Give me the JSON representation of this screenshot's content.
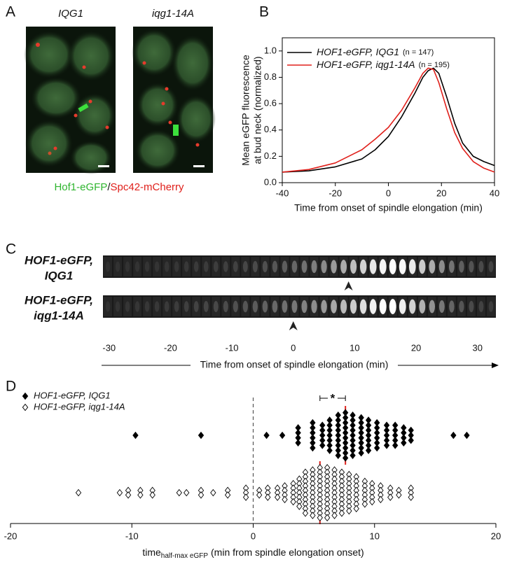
{
  "panel_a": {
    "label": "A",
    "images": [
      {
        "title": "IQG1"
      },
      {
        "title": "iqg1-14A"
      }
    ],
    "caption": {
      "green": "Hof1-eGFP",
      "separator": "/",
      "red": "Spc42-mCherry"
    }
  },
  "chart_data": [
    {
      "type": "line",
      "panel": "B",
      "xlabel": "Time from onset of spindle elongation (min)",
      "ylabel": [
        "Mean eGFP fluorescence",
        "at bud neck (normalized)"
      ],
      "x": [
        -40,
        -30,
        -20,
        -10,
        -5,
        0,
        5,
        10,
        13,
        15,
        17,
        19,
        22,
        25,
        28,
        32,
        36,
        40
      ],
      "series": [
        {
          "name": "HOF1-eGFP, IQG1",
          "n_label": "(n = 147)",
          "color": "#000000",
          "values": [
            0.08,
            0.09,
            0.12,
            0.18,
            0.25,
            0.35,
            0.5,
            0.68,
            0.8,
            0.85,
            0.87,
            0.83,
            0.65,
            0.45,
            0.3,
            0.2,
            0.16,
            0.13
          ]
        },
        {
          "name": "HOF1-eGFP, iqg1-14A",
          "n_label": "(n = 195)",
          "color": "#e0201b",
          "values": [
            0.08,
            0.1,
            0.15,
            0.25,
            0.33,
            0.42,
            0.55,
            0.72,
            0.83,
            0.87,
            0.86,
            0.76,
            0.56,
            0.38,
            0.26,
            0.16,
            0.11,
            0.08
          ]
        }
      ],
      "xlim": [
        -40,
        40
      ],
      "ylim": [
        0,
        1.1
      ],
      "xticks": [
        -40,
        -20,
        0,
        20,
        40
      ],
      "yticks": [
        {
          "value": 0,
          "label": "0.0"
        },
        0.2,
        0.4,
        0.6,
        0.8,
        {
          "value": 1,
          "label": "1.0"
        }
      ],
      "legend": "upper left"
    },
    {
      "type": "kymograph",
      "panel": "C",
      "rows": [
        {
          "label": [
            "HOF1-eGFP,",
            "IQG1"
          ],
          "arrow": 9
        },
        {
          "label": [
            "HOF1-eGFP,",
            "iqg1-14A"
          ],
          "arrow": 0
        }
      ],
      "xlabel": "Time from onset of spindle elongation (min)",
      "xlim": [
        -31,
        33
      ],
      "xticks": [
        -30,
        -20,
        -10,
        0,
        10,
        20,
        30
      ]
    },
    {
      "type": "strip",
      "panel": "D",
      "series": [
        {
          "name": "HOF1-eGFP, IQG1",
          "color": "#000000",
          "marker": "filled",
          "mean": 7.6,
          "x": [
            -9.7,
            -4.3,
            1.1,
            2.4,
            3.7,
            3.7,
            3.7,
            3.7,
            4.9,
            4.9,
            4.9,
            4.9,
            4.9,
            4.9,
            5.7,
            5.7,
            5.7,
            5.7,
            5.7,
            6.3,
            6.3,
            6.3,
            6.3,
            6.3,
            6.3,
            6.3,
            7,
            7,
            7,
            7,
            7,
            7,
            7,
            7,
            7,
            7.6,
            7.6,
            7.6,
            7.6,
            7.6,
            7.6,
            7.6,
            7.6,
            7.6,
            7.6,
            8.2,
            8.2,
            8.2,
            8.2,
            8.2,
            8.2,
            8.2,
            8.2,
            8.2,
            8.9,
            8.9,
            8.9,
            8.9,
            8.9,
            8.9,
            8.9,
            8.9,
            9.5,
            9.5,
            9.5,
            9.5,
            9.5,
            9.5,
            9.5,
            10.2,
            10.2,
            10.2,
            10.2,
            10.2,
            10.2,
            11,
            11,
            11,
            11,
            11,
            11.7,
            11.7,
            11.7,
            11.7,
            11.7,
            12.4,
            12.4,
            12.4,
            12.4,
            13,
            13,
            13,
            16.5,
            17.6
          ]
        },
        {
          "name": "HOF1-eGFP, iqg1-14A",
          "color": "#ffffff",
          "marker": "open",
          "mean": 5.5,
          "x": [
            -14.4,
            -11,
            -10.3,
            -10.3,
            -9.3,
            -9.3,
            -8.3,
            -8.3,
            -6.1,
            -5.5,
            -4.3,
            -4.3,
            -3.3,
            -2.1,
            -2.1,
            -0.6,
            -0.6,
            -0.6,
            0.5,
            0.5,
            1.2,
            1.2,
            1.2,
            2,
            2,
            2,
            2.6,
            2.6,
            2.6,
            2.6,
            3.3,
            3.3,
            3.3,
            3.3,
            3.3,
            3.8,
            3.8,
            3.8,
            3.8,
            3.8,
            3.8,
            3.8,
            4.3,
            4.3,
            4.3,
            4.3,
            4.3,
            4.3,
            4.3,
            4.3,
            4.3,
            4.3,
            4.9,
            4.9,
            4.9,
            4.9,
            4.9,
            4.9,
            4.9,
            4.9,
            4.9,
            4.9,
            4.9,
            5.5,
            5.5,
            5.5,
            5.5,
            5.5,
            5.5,
            5.5,
            5.5,
            5.5,
            5.5,
            5.5,
            5.5,
            6.1,
            6.1,
            6.1,
            6.1,
            6.1,
            6.1,
            6.1,
            6.1,
            6.1,
            6.1,
            6.1,
            6.1,
            6.7,
            6.7,
            6.7,
            6.7,
            6.7,
            6.7,
            6.7,
            6.7,
            6.7,
            6.7,
            6.7,
            7.3,
            7.3,
            7.3,
            7.3,
            7.3,
            7.3,
            7.3,
            7.3,
            7.3,
            7.3,
            7.9,
            7.9,
            7.9,
            7.9,
            7.9,
            7.9,
            7.9,
            7.9,
            7.9,
            8.5,
            8.5,
            8.5,
            8.5,
            8.5,
            8.5,
            8.5,
            8.5,
            9.2,
            9.2,
            9.2,
            9.2,
            9.2,
            9.2,
            9.8,
            9.8,
            9.8,
            9.8,
            9.8,
            10.5,
            10.5,
            10.5,
            10.5,
            11.3,
            11.3,
            11.3,
            12,
            12,
            13,
            13,
            13
          ]
        }
      ],
      "significance": "*",
      "reference_x": 0,
      "xlim": [
        -20,
        20
      ],
      "xticks": [
        -20,
        -10,
        0,
        10,
        20
      ],
      "xlabel": {
        "main": "time",
        "sub": "half-max eGFP",
        "rest": "(min from spindle elongation onset)"
      }
    }
  ]
}
